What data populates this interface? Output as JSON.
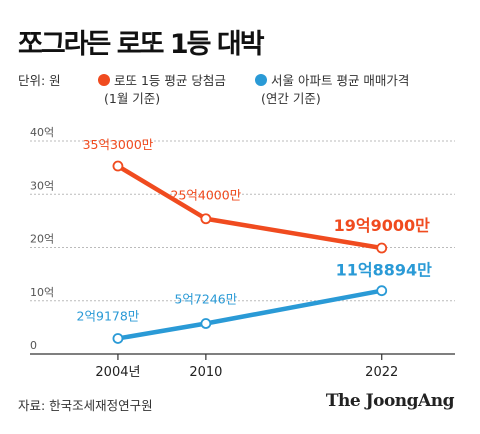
{
  "title": "쪼그라든 로또 1등 대박",
  "unit_label": "단위: 원",
  "colors": {
    "lotto": "#f04b1f",
    "apt": "#2a9ad6",
    "grid": "#bbbbbb",
    "axis": "#333333"
  },
  "chart_data": {
    "type": "line",
    "x": [
      "2004년",
      "2010",
      "2022"
    ],
    "x_numeric": [
      2004,
      2010,
      2022
    ],
    "xlim": [
      1998,
      2027
    ],
    "ylim": [
      0,
      40
    ],
    "yticks": [
      0,
      10,
      20,
      30,
      40
    ],
    "ytick_labels": [
      "0",
      "10억",
      "20억",
      "30억",
      "40억"
    ],
    "grid": true,
    "series": [
      {
        "key": "lotto",
        "name": "로또 1등 평균 당첨금",
        "name_sub": "(1월 기준)",
        "values": [
          35.3,
          25.4,
          19.9
        ],
        "labels": [
          "35억3000만",
          "25억4000만",
          "19억9000만"
        ]
      },
      {
        "key": "apt",
        "name": "서울 아파트 평균 매매가격",
        "name_sub": "(연간 기준)",
        "values": [
          2.9178,
          5.7246,
          11.8894
        ],
        "labels": [
          "2억9178만",
          "5억7246만",
          "11억8894만"
        ]
      }
    ]
  },
  "source": "자료: 한국조세재정연구원",
  "logo": "The JoongAng"
}
